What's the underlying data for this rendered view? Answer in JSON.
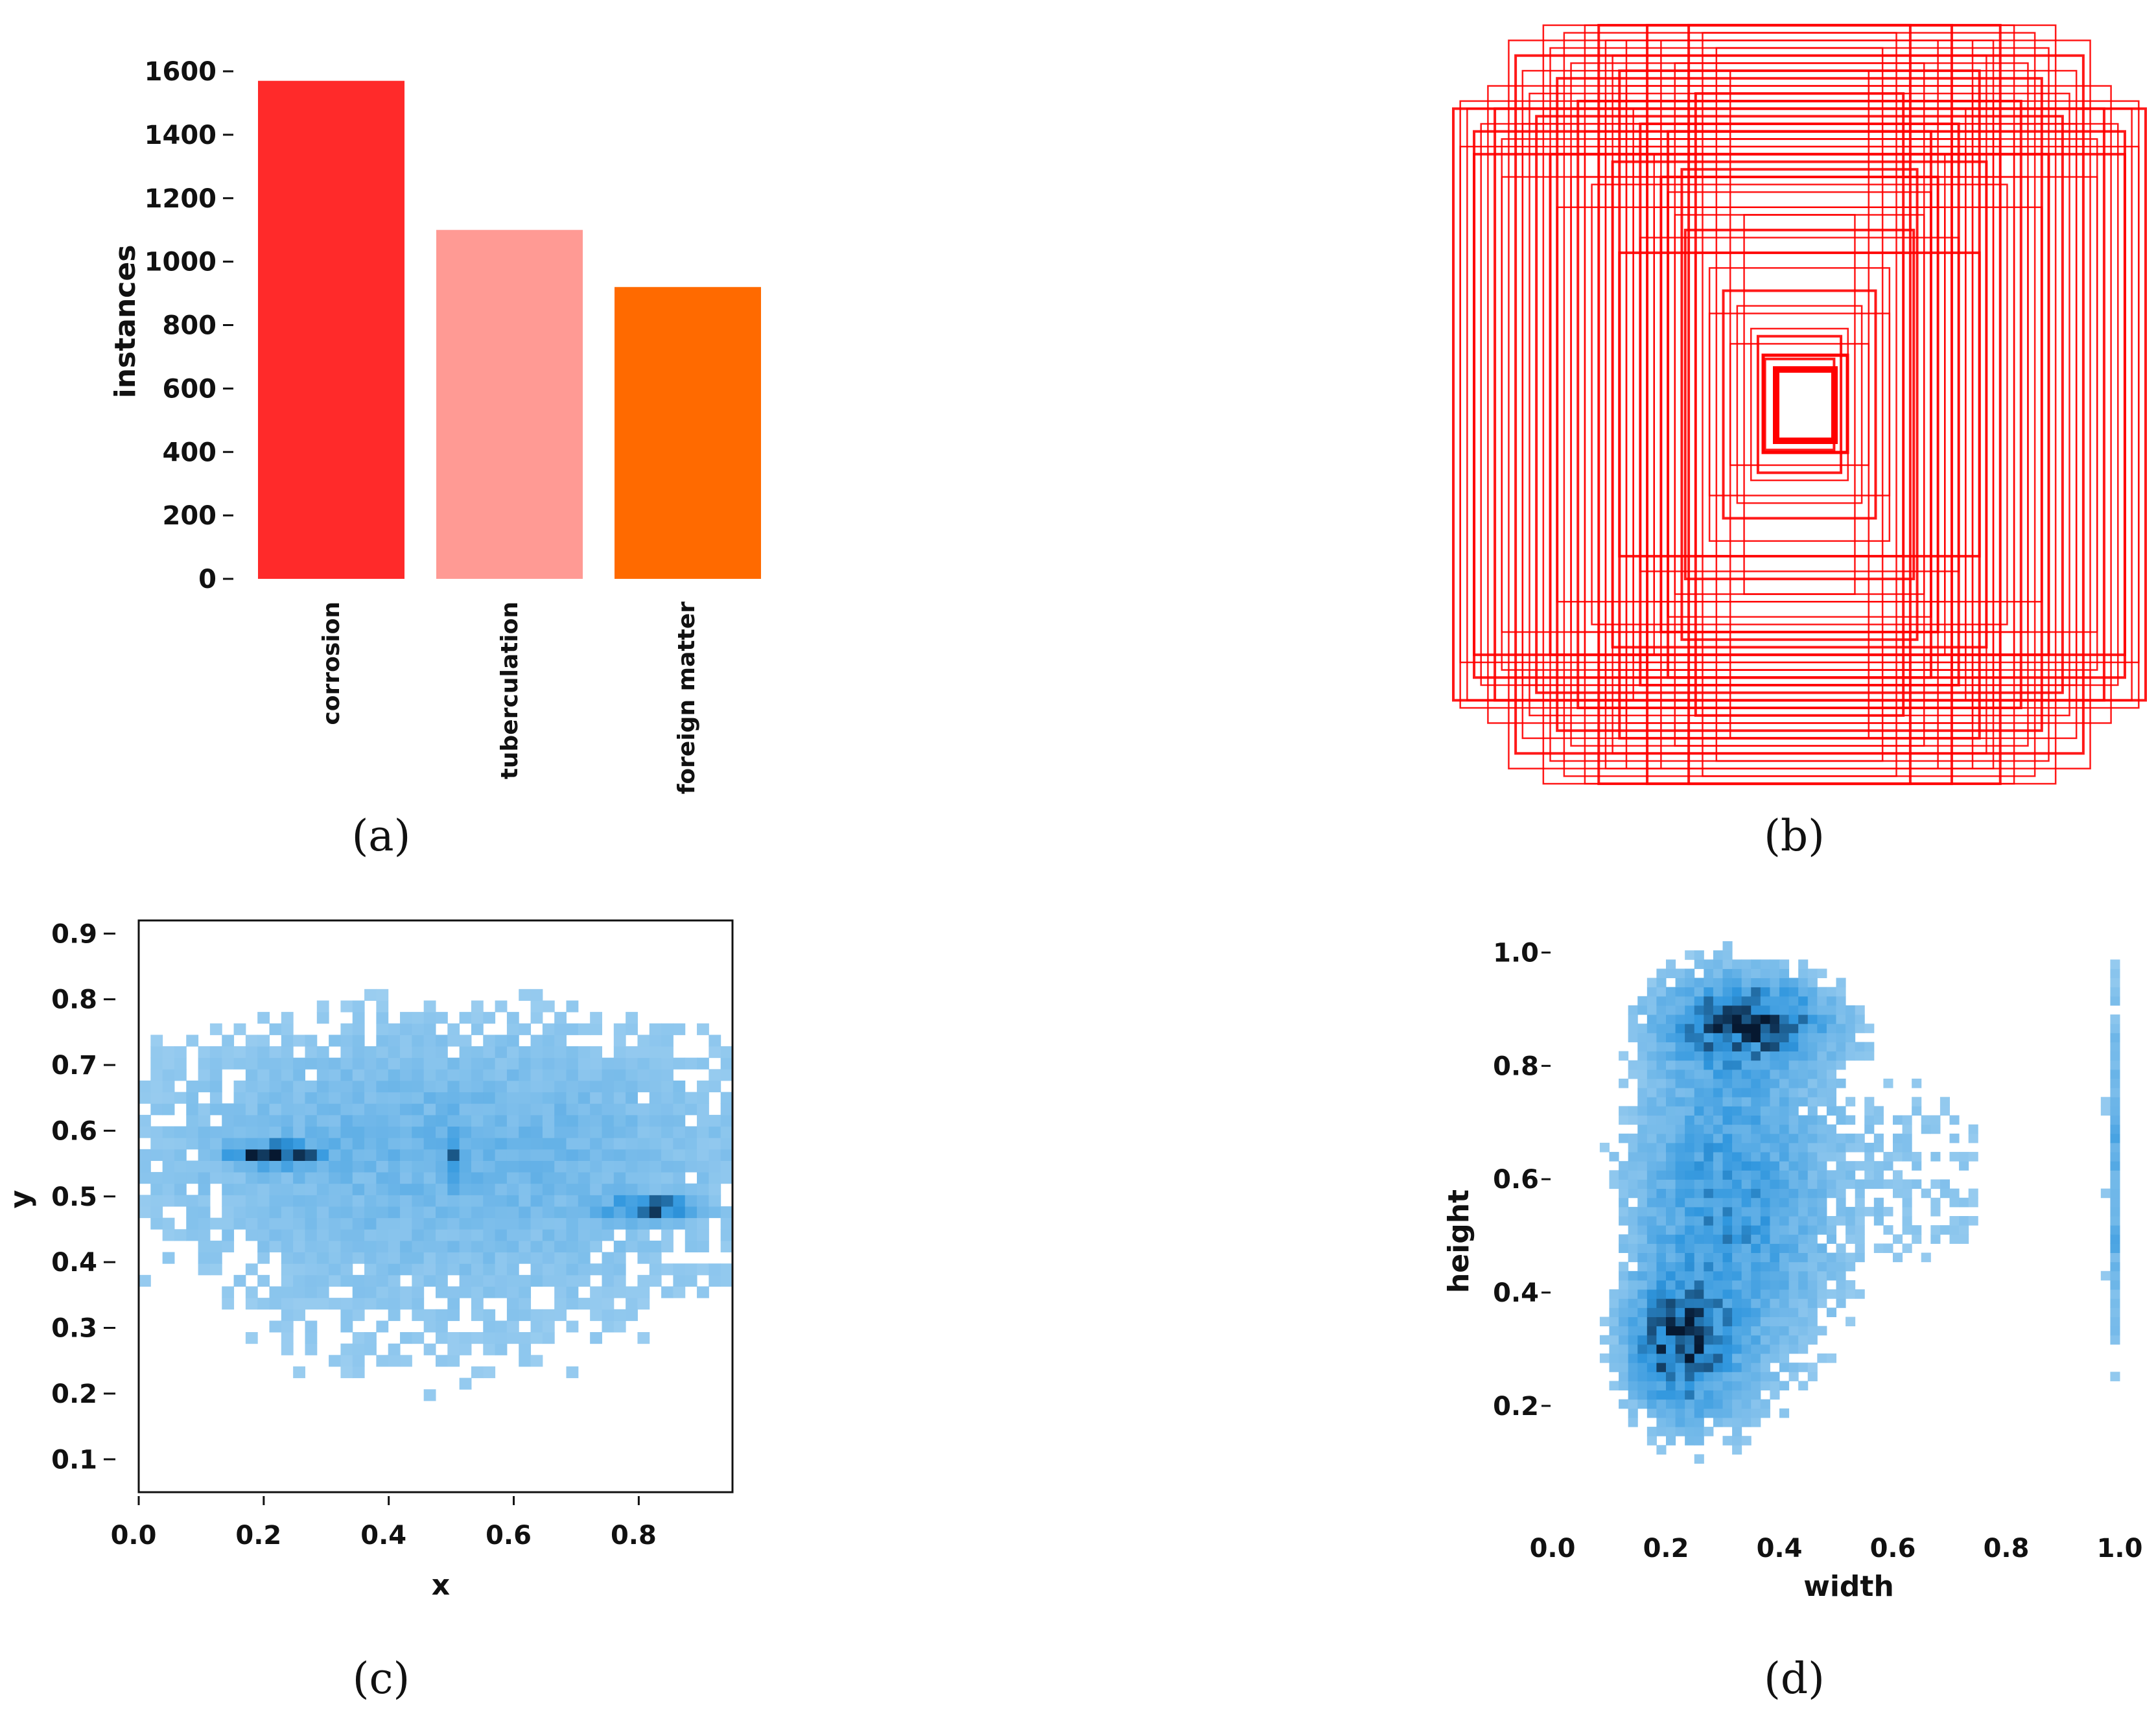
{
  "panel_labels": [
    "(a)",
    "(b)",
    "(c)",
    "(d)"
  ],
  "colors": {
    "corrosion": "#ff2a2a",
    "tuberculation": "#ff9a94",
    "foreign_matter": "#ff6a00",
    "box_stroke": "#ff0000",
    "hist_light": "#a8d4f2",
    "hist_mid": "#2f96de",
    "hist_dark": "#061830"
  },
  "chart_data": [
    {
      "id": "a",
      "type": "bar",
      "categories": [
        "corrosion",
        "tuberculation",
        "foreign matter"
      ],
      "values": [
        1570,
        1100,
        920
      ],
      "ylabel": "instances",
      "xlabel": "",
      "ylim": [
        0,
        1600
      ],
      "yticks": [
        0,
        200,
        400,
        600,
        800,
        1000,
        1200,
        1400,
        1600
      ],
      "ytick_labels": [
        "0",
        "200",
        "400",
        "600",
        "800",
        "1000",
        "1200",
        "1400",
        "1600"
      ]
    },
    {
      "id": "b",
      "type": "bounding-box overlay",
      "description": "Normalized bounding boxes of all labelled instances drawn centered",
      "box_sizes": [
        [
          0.1,
          0.12
        ],
        [
          0.14,
          0.2
        ],
        [
          0.18,
          0.26
        ],
        [
          0.22,
          0.3
        ],
        [
          0.26,
          0.36
        ],
        [
          0.3,
          0.4
        ],
        [
          0.33,
          0.46
        ],
        [
          0.36,
          0.5
        ],
        [
          0.38,
          0.56
        ],
        [
          0.4,
          0.6
        ],
        [
          0.42,
          0.66
        ],
        [
          0.44,
          0.7
        ],
        [
          0.46,
          0.74
        ],
        [
          0.48,
          0.78
        ],
        [
          0.5,
          0.84
        ],
        [
          0.52,
          0.88
        ],
        [
          0.54,
          0.92
        ],
        [
          0.56,
          0.96
        ],
        [
          0.58,
          1.0
        ],
        [
          0.6,
          0.58
        ],
        [
          0.62,
          0.72
        ],
        [
          0.64,
          0.8
        ],
        [
          0.66,
          0.9
        ],
        [
          0.68,
          0.98
        ],
        [
          0.7,
          0.86
        ],
        [
          0.72,
          0.94
        ],
        [
          0.74,
          1.0
        ],
        [
          0.76,
          0.76
        ],
        [
          0.78,
          0.82
        ],
        [
          0.8,
          0.88
        ],
        [
          0.82,
          0.92
        ],
        [
          0.84,
          0.96
        ],
        [
          0.86,
          0.7
        ],
        [
          0.88,
          0.78
        ],
        [
          0.9,
          0.84
        ],
        [
          0.92,
          0.74
        ],
        [
          0.94,
          0.66
        ],
        [
          0.96,
          0.78
        ],
        [
          0.98,
          0.8
        ],
        [
          1.0,
          0.78
        ],
        [
          0.24,
          0.94
        ],
        [
          0.28,
          0.98
        ],
        [
          0.32,
          1.0
        ],
        [
          0.2,
          0.88
        ],
        [
          0.16,
          0.5
        ],
        [
          0.34,
          0.62
        ],
        [
          0.42,
          0.52
        ],
        [
          0.46,
          0.44
        ],
        [
          0.54,
          0.64
        ],
        [
          0.58,
          0.7
        ],
        [
          0.5,
          0.96
        ],
        [
          0.44,
          1.0
        ],
        [
          0.4,
          0.96
        ],
        [
          0.36,
          0.9
        ],
        [
          0.3,
          0.82
        ],
        [
          0.62,
          1.0
        ],
        [
          0.66,
          0.6
        ],
        [
          0.72,
          0.66
        ],
        [
          0.8,
          0.74
        ],
        [
          0.86,
          0.6
        ],
        [
          0.94,
          0.72
        ],
        [
          0.98,
          0.68
        ],
        [
          0.7,
          0.52
        ],
        [
          0.52,
          0.4
        ],
        [
          0.26,
          0.24
        ],
        [
          0.2,
          0.16
        ],
        [
          0.12,
          0.18
        ],
        [
          0.56,
          0.8
        ],
        [
          0.48,
          0.68
        ],
        [
          0.38,
          0.72
        ]
      ]
    },
    {
      "id": "c",
      "type": "heatmap",
      "xlabel": "x",
      "ylabel": "y",
      "xlim": [
        0.0,
        0.95
      ],
      "ylim": [
        0.05,
        0.92
      ],
      "xticks": [
        0.0,
        0.2,
        0.4,
        0.6,
        0.8
      ],
      "xtick_labels": [
        "0.0",
        "0.2",
        "0.4",
        "0.6",
        "0.8"
      ],
      "yticks": [
        0.1,
        0.2,
        0.3,
        0.4,
        0.5,
        0.6,
        0.7,
        0.8,
        0.9
      ],
      "ytick_labels": [
        "0.1",
        "0.2",
        "0.3",
        "0.4",
        "0.5",
        "0.6",
        "0.7",
        "0.8",
        "0.9"
      ],
      "bins": 50,
      "density_centers": [
        {
          "x": 0.22,
          "y": 0.565,
          "sx": 0.05,
          "sy": 0.012,
          "w": 1.0
        },
        {
          "x": 0.82,
          "y": 0.483,
          "sx": 0.045,
          "sy": 0.012,
          "w": 1.0
        },
        {
          "x": 0.5,
          "y": 0.56,
          "sx": 0.01,
          "sy": 0.03,
          "w": 0.6
        },
        {
          "x": 0.5,
          "y": 0.6,
          "sx": 0.4,
          "sy": 0.14,
          "w": 0.32
        },
        {
          "x": 0.5,
          "y": 0.35,
          "sx": 0.4,
          "sy": 0.2,
          "w": 0.14
        }
      ],
      "border": true
    },
    {
      "id": "d",
      "type": "heatmap",
      "xlabel": "width",
      "ylabel": "height",
      "xlim": [
        0.0,
        1.0
      ],
      "ylim": [
        0.05,
        1.02
      ],
      "xticks": [
        0.0,
        0.2,
        0.4,
        0.6,
        0.8,
        1.0
      ],
      "xtick_labels": [
        "0.0",
        "0.2",
        "0.4",
        "0.6",
        "0.8",
        "1.0"
      ],
      "yticks": [
        0.2,
        0.4,
        0.6,
        0.8,
        1.0
      ],
      "ytick_labels": [
        "0.2",
        "0.4",
        "0.6",
        "0.8",
        "1.0"
      ],
      "bins": 60,
      "density_centers": [
        {
          "x": 0.35,
          "y": 0.88,
          "sx": 0.1,
          "sy": 0.05,
          "w": 0.9
        },
        {
          "x": 0.3,
          "y": 0.55,
          "sx": 0.12,
          "sy": 0.25,
          "w": 0.7
        },
        {
          "x": 0.22,
          "y": 0.3,
          "sx": 0.06,
          "sy": 0.08,
          "w": 0.8
        },
        {
          "x": 0.99,
          "y": 0.6,
          "sx": 0.01,
          "sy": 0.25,
          "w": 0.5
        },
        {
          "x": 0.65,
          "y": 0.6,
          "sx": 0.15,
          "sy": 0.2,
          "w": 0.2
        }
      ],
      "border": false
    }
  ]
}
